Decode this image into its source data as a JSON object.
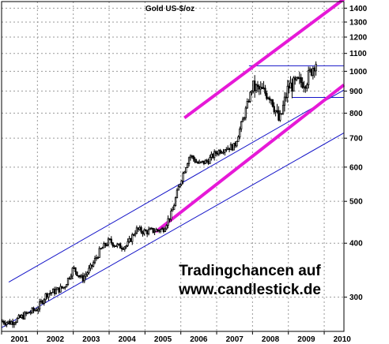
{
  "chart_data": {
    "type": "candlestick",
    "title": "Gold US-$/oz",
    "scale": "log",
    "ylim": [
      250,
      1450
    ],
    "y_ticks": [
      300,
      400,
      500,
      600,
      700,
      800,
      900,
      1000,
      1100,
      1200,
      1300,
      1400
    ],
    "x_labels": [
      "2001",
      "2002",
      "2003",
      "2004",
      "2005",
      "2006",
      "2007",
      "2008",
      "2009",
      "2010"
    ],
    "xlim": [
      2001.0,
      2010.55
    ],
    "grid": true,
    "colors": {
      "candle": "#000000",
      "channel_blue": "#1414c8",
      "trend_magenta": "#e619d7",
      "grid": "#9a9a9a"
    },
    "series": [
      {
        "x": 2001.0,
        "y": 264
      },
      {
        "x": 2001.25,
        "y": 262
      },
      {
        "x": 2001.5,
        "y": 268
      },
      {
        "x": 2001.75,
        "y": 276
      },
      {
        "x": 2002.0,
        "y": 282
      },
      {
        "x": 2002.25,
        "y": 305
      },
      {
        "x": 2002.5,
        "y": 310
      },
      {
        "x": 2002.75,
        "y": 317
      },
      {
        "x": 2003.0,
        "y": 350
      },
      {
        "x": 2003.25,
        "y": 330
      },
      {
        "x": 2003.5,
        "y": 352
      },
      {
        "x": 2003.75,
        "y": 385
      },
      {
        "x": 2004.0,
        "y": 405
      },
      {
        "x": 2004.25,
        "y": 393
      },
      {
        "x": 2004.5,
        "y": 395
      },
      {
        "x": 2004.75,
        "y": 430
      },
      {
        "x": 2005.0,
        "y": 425
      },
      {
        "x": 2005.25,
        "y": 428
      },
      {
        "x": 2005.5,
        "y": 430
      },
      {
        "x": 2005.75,
        "y": 470
      },
      {
        "x": 2006.0,
        "y": 560
      },
      {
        "x": 2006.25,
        "y": 640
      },
      {
        "x": 2006.5,
        "y": 610
      },
      {
        "x": 2006.75,
        "y": 620
      },
      {
        "x": 2007.0,
        "y": 650
      },
      {
        "x": 2007.25,
        "y": 665
      },
      {
        "x": 2007.5,
        "y": 670
      },
      {
        "x": 2007.75,
        "y": 780
      },
      {
        "x": 2008.0,
        "y": 920
      },
      {
        "x": 2008.25,
        "y": 900
      },
      {
        "x": 2008.5,
        "y": 880
      },
      {
        "x": 2008.75,
        "y": 760
      },
      {
        "x": 2009.0,
        "y": 920
      },
      {
        "x": 2009.25,
        "y": 940
      },
      {
        "x": 2009.5,
        "y": 950
      },
      {
        "x": 2009.75,
        "y": 1050
      }
    ],
    "annotations": {
      "line1": "Tradingchancen auf",
      "line2": "www.candlestick.de"
    }
  }
}
